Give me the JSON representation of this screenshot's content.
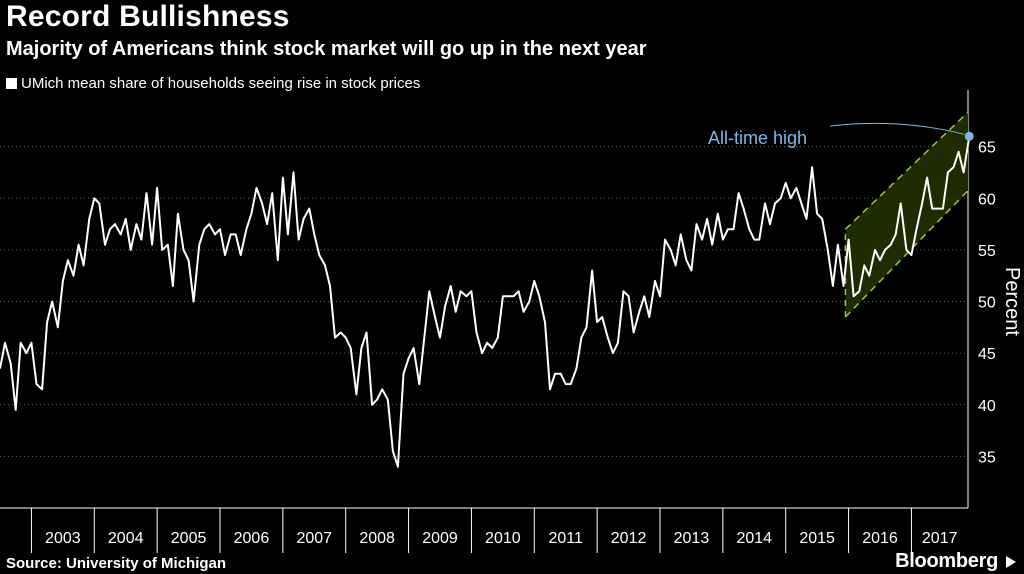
{
  "header": {
    "title": "Record Bullishness",
    "subtitle": "Majority of Americans think stock market will go up in the next year"
  },
  "legend": {
    "label": "UMich mean share of households seeing rise in stock prices",
    "swatch_color": "#ffffff"
  },
  "footer": {
    "source": "Source: University of Michigan",
    "brand": "Bloomberg"
  },
  "chart_data": {
    "type": "line",
    "title": "Record Bullishness",
    "subtitle": "Majority of Americans think stock market will go up in the next year",
    "ylabel": "Percent",
    "xlabel": "",
    "ylim": [
      30,
      70
    ],
    "yticks": [
      35,
      40,
      45,
      50,
      55,
      60,
      65
    ],
    "x_categories": [
      "2003",
      "2004",
      "2005",
      "2006",
      "2007",
      "2008",
      "2009",
      "2010",
      "2011",
      "2012",
      "2013",
      "2014",
      "2015",
      "2016",
      "2017"
    ],
    "x_range": [
      2002.5,
      2017.9
    ],
    "grid": "horizontal dotted",
    "line_color": "#ffffff",
    "series": [
      {
        "values": [
          [
            2002.5,
            43.5
          ],
          [
            2002.58,
            46.0
          ],
          [
            2002.67,
            44.0
          ],
          [
            2002.75,
            39.5
          ],
          [
            2002.83,
            46.0
          ],
          [
            2002.92,
            45.0
          ],
          [
            2003.0,
            46.0
          ],
          [
            2003.08,
            42.0
          ],
          [
            2003.17,
            41.5
          ],
          [
            2003.25,
            48.0
          ],
          [
            2003.33,
            50.0
          ],
          [
            2003.42,
            47.5
          ],
          [
            2003.5,
            52.0
          ],
          [
            2003.58,
            54.0
          ],
          [
            2003.67,
            52.5
          ],
          [
            2003.75,
            55.5
          ],
          [
            2003.83,
            53.5
          ],
          [
            2003.92,
            58.0
          ],
          [
            2004.0,
            60.0
          ],
          [
            2004.08,
            59.5
          ],
          [
            2004.17,
            55.5
          ],
          [
            2004.25,
            57.0
          ],
          [
            2004.33,
            57.5
          ],
          [
            2004.42,
            56.5
          ],
          [
            2004.5,
            58.0
          ],
          [
            2004.58,
            55.0
          ],
          [
            2004.67,
            57.5
          ],
          [
            2004.75,
            56.0
          ],
          [
            2004.83,
            60.5
          ],
          [
            2004.92,
            55.5
          ],
          [
            2005.0,
            61.0
          ],
          [
            2005.08,
            55.0
          ],
          [
            2005.17,
            55.5
          ],
          [
            2005.25,
            51.5
          ],
          [
            2005.33,
            58.5
          ],
          [
            2005.42,
            55.0
          ],
          [
            2005.5,
            54.0
          ],
          [
            2005.58,
            50.0
          ],
          [
            2005.67,
            55.5
          ],
          [
            2005.75,
            57.0
          ],
          [
            2005.83,
            57.5
          ],
          [
            2005.92,
            56.5
          ],
          [
            2006.0,
            57.0
          ],
          [
            2006.08,
            54.5
          ],
          [
            2006.17,
            56.5
          ],
          [
            2006.25,
            56.5
          ],
          [
            2006.33,
            54.5
          ],
          [
            2006.42,
            57.0
          ],
          [
            2006.5,
            58.5
          ],
          [
            2006.58,
            61.0
          ],
          [
            2006.67,
            59.5
          ],
          [
            2006.75,
            57.5
          ],
          [
            2006.83,
            60.5
          ],
          [
            2006.92,
            54.0
          ],
          [
            2007.0,
            62.0
          ],
          [
            2007.08,
            56.5
          ],
          [
            2007.17,
            62.5
          ],
          [
            2007.25,
            56.0
          ],
          [
            2007.33,
            58.0
          ],
          [
            2007.42,
            59.0
          ],
          [
            2007.5,
            56.5
          ],
          [
            2007.58,
            54.5
          ],
          [
            2007.67,
            53.5
          ],
          [
            2007.75,
            51.5
          ],
          [
            2007.83,
            46.5
          ],
          [
            2007.92,
            47.0
          ],
          [
            2008.0,
            46.5
          ],
          [
            2008.08,
            45.5
          ],
          [
            2008.17,
            41.0
          ],
          [
            2008.25,
            45.5
          ],
          [
            2008.33,
            47.0
          ],
          [
            2008.42,
            40.0
          ],
          [
            2008.5,
            40.5
          ],
          [
            2008.58,
            41.5
          ],
          [
            2008.67,
            40.5
          ],
          [
            2008.75,
            35.5
          ],
          [
            2008.83,
            34.0
          ],
          [
            2008.92,
            43.0
          ],
          [
            2009.0,
            44.5
          ],
          [
            2009.08,
            45.5
          ],
          [
            2009.17,
            42.0
          ],
          [
            2009.25,
            46.5
          ],
          [
            2009.33,
            51.0
          ],
          [
            2009.42,
            48.5
          ],
          [
            2009.5,
            46.5
          ],
          [
            2009.58,
            49.5
          ],
          [
            2009.67,
            51.5
          ],
          [
            2009.75,
            49.0
          ],
          [
            2009.83,
            51.0
          ],
          [
            2009.92,
            50.5
          ],
          [
            2010.0,
            51.0
          ],
          [
            2010.08,
            47.0
          ],
          [
            2010.17,
            45.0
          ],
          [
            2010.25,
            46.0
          ],
          [
            2010.33,
            45.5
          ],
          [
            2010.42,
            46.5
          ],
          [
            2010.5,
            50.5
          ],
          [
            2010.58,
            50.5
          ],
          [
            2010.67,
            50.5
          ],
          [
            2010.75,
            51.0
          ],
          [
            2010.83,
            49.0
          ],
          [
            2010.92,
            50.0
          ],
          [
            2011.0,
            52.0
          ],
          [
            2011.08,
            50.5
          ],
          [
            2011.17,
            48.0
          ],
          [
            2011.25,
            41.5
          ],
          [
            2011.33,
            43.0
          ],
          [
            2011.42,
            43.0
          ],
          [
            2011.5,
            42.0
          ],
          [
            2011.58,
            42.0
          ],
          [
            2011.67,
            43.5
          ],
          [
            2011.75,
            46.5
          ],
          [
            2011.83,
            47.5
          ],
          [
            2011.92,
            53.0
          ],
          [
            2012.0,
            48.0
          ],
          [
            2012.08,
            48.5
          ],
          [
            2012.17,
            46.5
          ],
          [
            2012.25,
            45.0
          ],
          [
            2012.33,
            46.0
          ],
          [
            2012.42,
            51.0
          ],
          [
            2012.5,
            50.5
          ],
          [
            2012.58,
            47.0
          ],
          [
            2012.67,
            49.0
          ],
          [
            2012.75,
            50.5
          ],
          [
            2012.83,
            48.5
          ],
          [
            2012.92,
            52.0
          ],
          [
            2013.0,
            50.5
          ],
          [
            2013.08,
            56.0
          ],
          [
            2013.17,
            55.0
          ],
          [
            2013.25,
            53.5
          ],
          [
            2013.33,
            56.5
          ],
          [
            2013.42,
            54.0
          ],
          [
            2013.5,
            53.0
          ],
          [
            2013.58,
            57.5
          ],
          [
            2013.67,
            56.0
          ],
          [
            2013.75,
            58.0
          ],
          [
            2013.83,
            55.5
          ],
          [
            2013.92,
            58.5
          ],
          [
            2014.0,
            56.0
          ],
          [
            2014.08,
            57.0
          ],
          [
            2014.17,
            57.0
          ],
          [
            2014.25,
            60.5
          ],
          [
            2014.33,
            59.0
          ],
          [
            2014.42,
            57.0
          ],
          [
            2014.5,
            56.0
          ],
          [
            2014.58,
            56.0
          ],
          [
            2014.67,
            59.5
          ],
          [
            2014.75,
            57.5
          ],
          [
            2014.83,
            59.5
          ],
          [
            2014.92,
            60.0
          ],
          [
            2015.0,
            61.5
          ],
          [
            2015.08,
            60.0
          ],
          [
            2015.17,
            61.0
          ],
          [
            2015.25,
            59.5
          ],
          [
            2015.33,
            58.0
          ],
          [
            2015.42,
            63.0
          ],
          [
            2015.5,
            58.5
          ],
          [
            2015.58,
            58.0
          ],
          [
            2015.67,
            55.0
          ],
          [
            2015.75,
            51.5
          ],
          [
            2015.83,
            55.5
          ],
          [
            2015.92,
            51.5
          ],
          [
            2016.0,
            56.0
          ],
          [
            2016.08,
            50.5
          ],
          [
            2016.17,
            51.0
          ],
          [
            2016.25,
            53.5
          ],
          [
            2016.33,
            52.5
          ],
          [
            2016.42,
            55.0
          ],
          [
            2016.5,
            54.0
          ],
          [
            2016.58,
            55.0
          ],
          [
            2016.67,
            55.5
          ],
          [
            2016.75,
            56.5
          ],
          [
            2016.83,
            59.5
          ],
          [
            2016.92,
            55.0
          ],
          [
            2017.0,
            54.5
          ],
          [
            2017.08,
            57.0
          ],
          [
            2017.17,
            59.5
          ],
          [
            2017.25,
            62.0
          ],
          [
            2017.33,
            59.0
          ],
          [
            2017.42,
            59.0
          ],
          [
            2017.5,
            59.0
          ],
          [
            2017.58,
            62.5
          ],
          [
            2017.67,
            63.0
          ],
          [
            2017.75,
            64.5
          ],
          [
            2017.83,
            62.5
          ],
          [
            2017.92,
            66.0
          ]
        ]
      }
    ],
    "trend_channel": {
      "fill_color": "#1f2b00",
      "line_color": "#8ccf3a",
      "upper": [
        [
          2015.95,
          57.0
        ],
        [
          2018.1,
          69.5
        ]
      ],
      "lower": [
        [
          2015.95,
          48.5
        ],
        [
          2018.1,
          62.0
        ]
      ]
    },
    "annotation": {
      "text": "All-time high",
      "x": 2017.92,
      "y": 66.0,
      "color": "#7fb6ea"
    }
  }
}
